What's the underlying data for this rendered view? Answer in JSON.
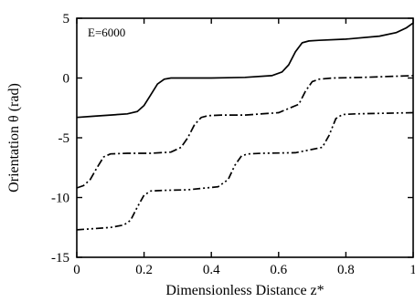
{
  "chart_data": {
    "type": "line",
    "title": "",
    "xlabel": "Dimensionless Distance  z*",
    "ylabel": "Orientation  θ (rad)",
    "annotation": "E=6000",
    "xlim": [
      0,
      1
    ],
    "ylim": [
      -15,
      5
    ],
    "xticks": [
      0,
      0.2,
      0.4,
      0.6,
      0.8,
      1
    ],
    "xtick_labels": [
      "0",
      "0.2",
      "0.4",
      "0.6",
      "0.8",
      "1"
    ],
    "yticks": [
      5,
      0,
      -5,
      -10,
      -15
    ],
    "ytick_labels": [
      "5",
      "0",
      "-5",
      "-10",
      "-15"
    ],
    "grid": false,
    "series": [
      {
        "style": "solid",
        "x": [
          0,
          0.05,
          0.1,
          0.15,
          0.18,
          0.2,
          0.22,
          0.24,
          0.26,
          0.28,
          0.32,
          0.4,
          0.5,
          0.58,
          0.61,
          0.63,
          0.65,
          0.67,
          0.69,
          0.72,
          0.8,
          0.9,
          0.95,
          0.98,
          1.0
        ],
        "y": [
          -3.3,
          -3.2,
          -3.1,
          -3.0,
          -2.8,
          -2.3,
          -1.4,
          -0.5,
          -0.1,
          0.0,
          0.0,
          0.0,
          0.05,
          0.2,
          0.5,
          1.1,
          2.2,
          2.95,
          3.1,
          3.15,
          3.25,
          3.5,
          3.8,
          4.2,
          4.6
        ]
      },
      {
        "style": "dashdot",
        "x": [
          0,
          0.02,
          0.04,
          0.06,
          0.08,
          0.1,
          0.15,
          0.22,
          0.28,
          0.31,
          0.33,
          0.35,
          0.37,
          0.39,
          0.43,
          0.5,
          0.6,
          0.66,
          0.68,
          0.7,
          0.72,
          0.76,
          0.85,
          1.0
        ],
        "y": [
          -9.2,
          -9.0,
          -8.5,
          -7.5,
          -6.6,
          -6.35,
          -6.3,
          -6.3,
          -6.2,
          -5.8,
          -5.0,
          -3.9,
          -3.3,
          -3.15,
          -3.1,
          -3.1,
          -2.9,
          -2.2,
          -1.1,
          -0.3,
          -0.1,
          0.0,
          0.05,
          0.2
        ]
      },
      {
        "style": "dashdotdot",
        "x": [
          0,
          0.05,
          0.1,
          0.14,
          0.16,
          0.18,
          0.2,
          0.22,
          0.26,
          0.33,
          0.42,
          0.45,
          0.47,
          0.49,
          0.51,
          0.55,
          0.65,
          0.73,
          0.75,
          0.77,
          0.79,
          0.83,
          0.92,
          1.0
        ],
        "y": [
          -12.7,
          -12.6,
          -12.5,
          -12.3,
          -11.9,
          -10.8,
          -9.8,
          -9.45,
          -9.4,
          -9.35,
          -9.1,
          -8.5,
          -7.3,
          -6.5,
          -6.35,
          -6.3,
          -6.25,
          -5.8,
          -4.8,
          -3.4,
          -3.05,
          -3.0,
          -2.95,
          -2.9
        ]
      }
    ]
  }
}
